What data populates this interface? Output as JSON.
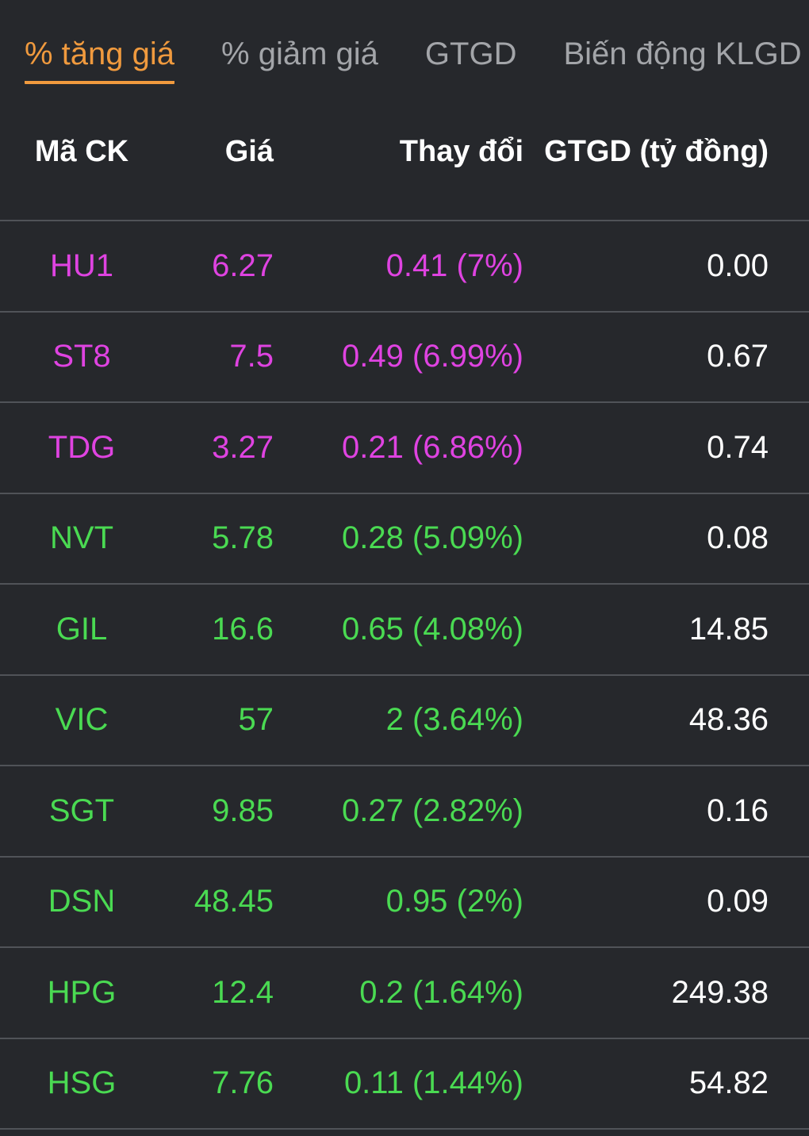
{
  "colors": {
    "background": "#26282c",
    "accent_orange": "#f09a3e",
    "tab_inactive_gray": "#a3a5a9",
    "ceiling_purple": "#df43e1",
    "up_green": "#4ada52",
    "value_white": "#ffffff",
    "divider_gray": "#505358"
  },
  "tabs": [
    {
      "label": "% tăng giá",
      "active": true
    },
    {
      "label": "% giảm giá",
      "active": false
    },
    {
      "label": "GTGD",
      "active": false
    },
    {
      "label": "Biến động KLGD",
      "active": false
    }
  ],
  "table": {
    "headers": [
      "Mã CK",
      "Giá",
      "Thay đổi",
      "GTGD (tỷ đồng)"
    ],
    "rows": [
      {
        "symbol": "HU1",
        "price": "6.27",
        "change": "0.41 (7%)",
        "gtgd": "0.00",
        "trend": "ceiling"
      },
      {
        "symbol": "ST8",
        "price": "7.5",
        "change": "0.49 (6.99%)",
        "gtgd": "0.67",
        "trend": "ceiling"
      },
      {
        "symbol": "TDG",
        "price": "3.27",
        "change": "0.21 (6.86%)",
        "gtgd": "0.74",
        "trend": "ceiling"
      },
      {
        "symbol": "NVT",
        "price": "5.78",
        "change": "0.28 (5.09%)",
        "gtgd": "0.08",
        "trend": "up"
      },
      {
        "symbol": "GIL",
        "price": "16.6",
        "change": "0.65 (4.08%)",
        "gtgd": "14.85",
        "trend": "up"
      },
      {
        "symbol": "VIC",
        "price": "57",
        "change": "2 (3.64%)",
        "gtgd": "48.36",
        "trend": "up"
      },
      {
        "symbol": "SGT",
        "price": "9.85",
        "change": "0.27 (2.82%)",
        "gtgd": "0.16",
        "trend": "up"
      },
      {
        "symbol": "DSN",
        "price": "48.45",
        "change": "0.95 (2%)",
        "gtgd": "0.09",
        "trend": "up"
      },
      {
        "symbol": "HPG",
        "price": "12.4",
        "change": "0.2 (1.64%)",
        "gtgd": "249.38",
        "trend": "up"
      },
      {
        "symbol": "HSG",
        "price": "7.76",
        "change": "0.11 (1.44%)",
        "gtgd": "54.82",
        "trend": "up"
      }
    ]
  }
}
